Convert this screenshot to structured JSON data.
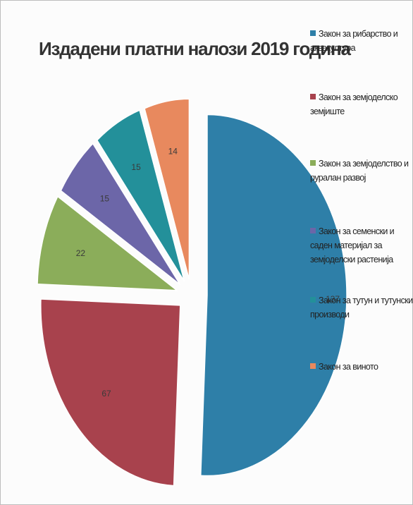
{
  "chart_data": {
    "type": "pie",
    "title": "Издадени платни налози 2019 година",
    "legend_position": "right",
    "slices": [
      {
        "label": "Закон за рибарство и аквакултура",
        "value": 137,
        "color": "#2e7fa8"
      },
      {
        "label": "Закон за земјоделско земјиште",
        "value": 67,
        "color": "#a8424d"
      },
      {
        "label": "Закон за земјоделство и руралан развој",
        "value": 22,
        "color": "#8bad5a"
      },
      {
        "label": "Закон за семенски и саден материјал за земјоделски растенија",
        "value": 15,
        "color": "#6c66a8"
      },
      {
        "label": "Закон за тутун и тутунски производи",
        "value": 15,
        "color": "#23909a"
      },
      {
        "label": "Закон за виното",
        "value": 14,
        "color": "#e8895e"
      }
    ]
  },
  "legend_lines": [
    [
      "Закон за рибарство и",
      "аквакултура"
    ],
    [
      "Закон за земјоделско",
      "земјиште"
    ],
    [
      "Закон за земјоделство и",
      "руралан развој"
    ],
    [
      "Закон за семенски и",
      "саден материјал за",
      "земјоделски растенија"
    ],
    [
      "Закон за тутун и тутунски",
      "производи"
    ],
    [
      "Закон за виното"
    ]
  ]
}
